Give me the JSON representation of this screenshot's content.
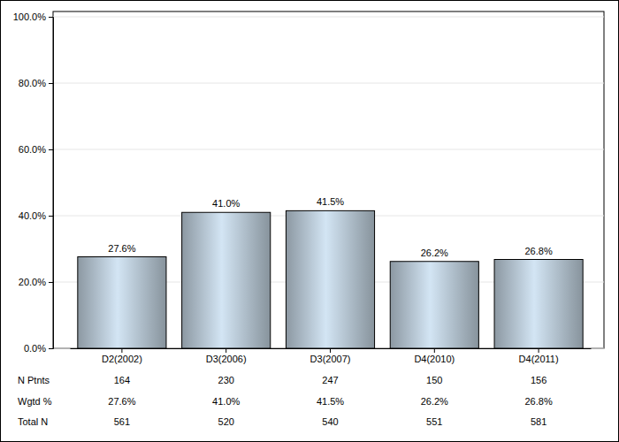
{
  "chart_data": {
    "type": "bar",
    "categories": [
      "D2(2002)",
      "D3(2006)",
      "D3(2007)",
      "D4(2010)",
      "D4(2011)"
    ],
    "values": [
      27.6,
      41.0,
      41.5,
      26.2,
      26.8
    ],
    "value_labels": [
      "27.6%",
      "41.0%",
      "41.5%",
      "26.2%",
      "26.8%"
    ],
    "data_labels": true,
    "color": "#b4c3d0",
    "ylim": [
      0,
      100
    ],
    "yticks": [
      {
        "value": 0,
        "label": "0.0%"
      },
      {
        "value": 20,
        "label": "20.0%"
      },
      {
        "value": 40,
        "label": "40.0%"
      },
      {
        "value": 60,
        "label": "60.0%"
      },
      {
        "value": 80,
        "label": "80.0%"
      },
      {
        "value": 100,
        "label": "100.0%"
      }
    ],
    "grid": true,
    "table": {
      "rows": [
        {
          "name": "N Ptnts",
          "values": [
            164,
            230,
            247,
            150,
            156
          ]
        },
        {
          "name": "Wgtd %",
          "values": [
            27.6,
            41.0,
            41.5,
            26.2,
            26.8
          ],
          "value_labels": [
            "27.6%",
            "41.0%",
            "41.5%",
            "26.2%",
            "26.8%"
          ]
        },
        {
          "name": "Total N",
          "values": [
            561,
            520,
            540,
            551,
            581
          ]
        }
      ]
    }
  }
}
